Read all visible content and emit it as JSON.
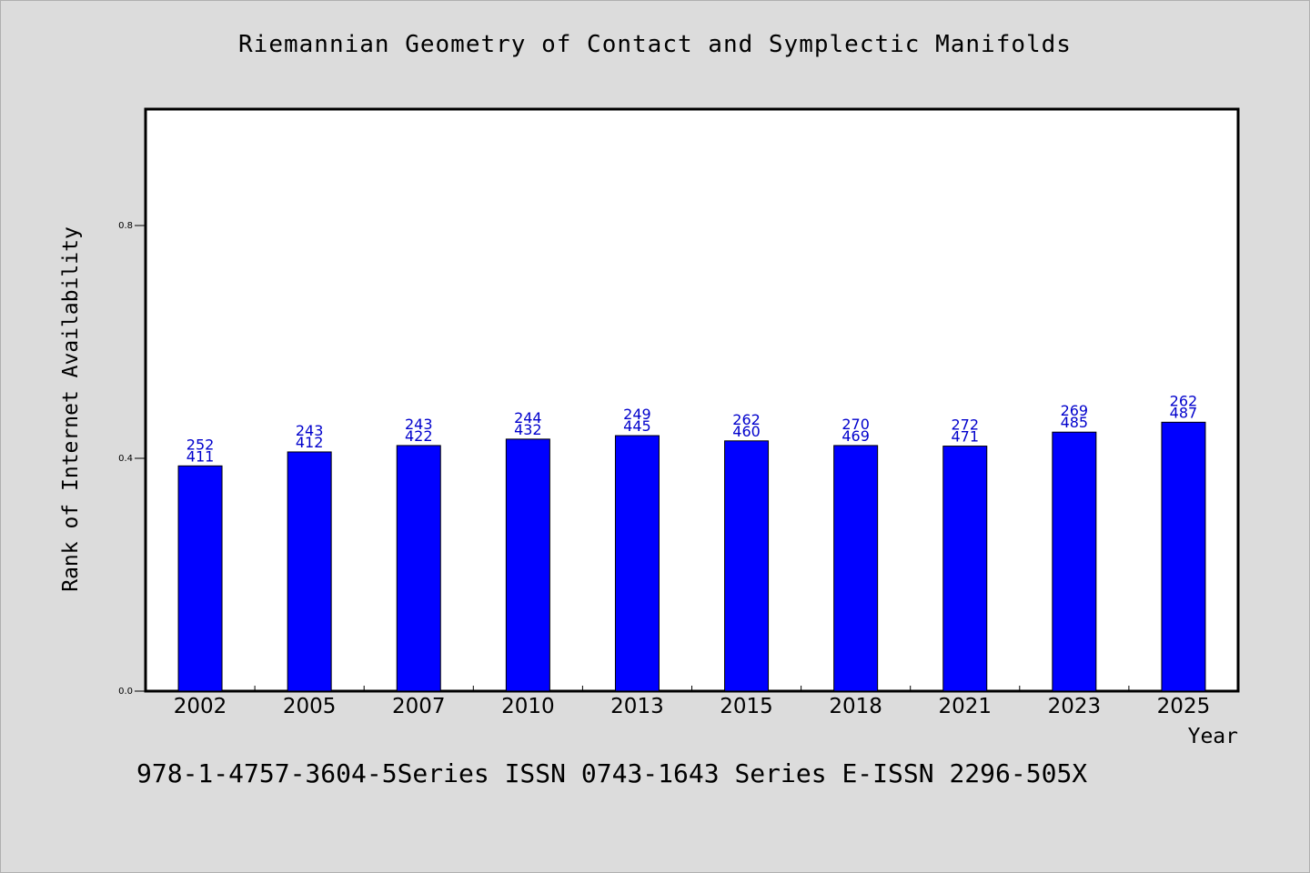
{
  "chart_data": {
    "type": "bar",
    "title": "Riemannian Geometry of Contact and Symplectic Manifolds",
    "xlabel": "Year",
    "ylabel": "Rank of Internet Availability",
    "categories": [
      "2002",
      "2005",
      "2007",
      "2010",
      "2013",
      "2015",
      "2018",
      "2021",
      "2023",
      "2025"
    ],
    "values": [
      0.387,
      0.411,
      0.422,
      0.433,
      0.439,
      0.43,
      0.422,
      0.421,
      0.445,
      0.462
    ],
    "label_top": [
      "252",
      "243",
      "243",
      "244",
      "249",
      "262",
      "270",
      "272",
      "269",
      "262"
    ],
    "label_bottom": [
      "411",
      "412",
      "422",
      "432",
      "445",
      "460",
      "469",
      "471",
      "485",
      "487"
    ],
    "ylim": [
      0,
      1.0
    ],
    "yticks": [
      0.0,
      0.4,
      0.8
    ],
    "ytick_labels": [
      "0.0",
      "0.4",
      "0.8"
    ],
    "grid": false,
    "colors": {
      "bar": "#0000ff",
      "data_label": "#0000cc",
      "background": "#dcdcdc",
      "plot_bg": "#ffffff"
    }
  },
  "footer": "978-1-4757-3604-5Series ISSN 0743-1643 Series E-ISSN 2296-505X"
}
